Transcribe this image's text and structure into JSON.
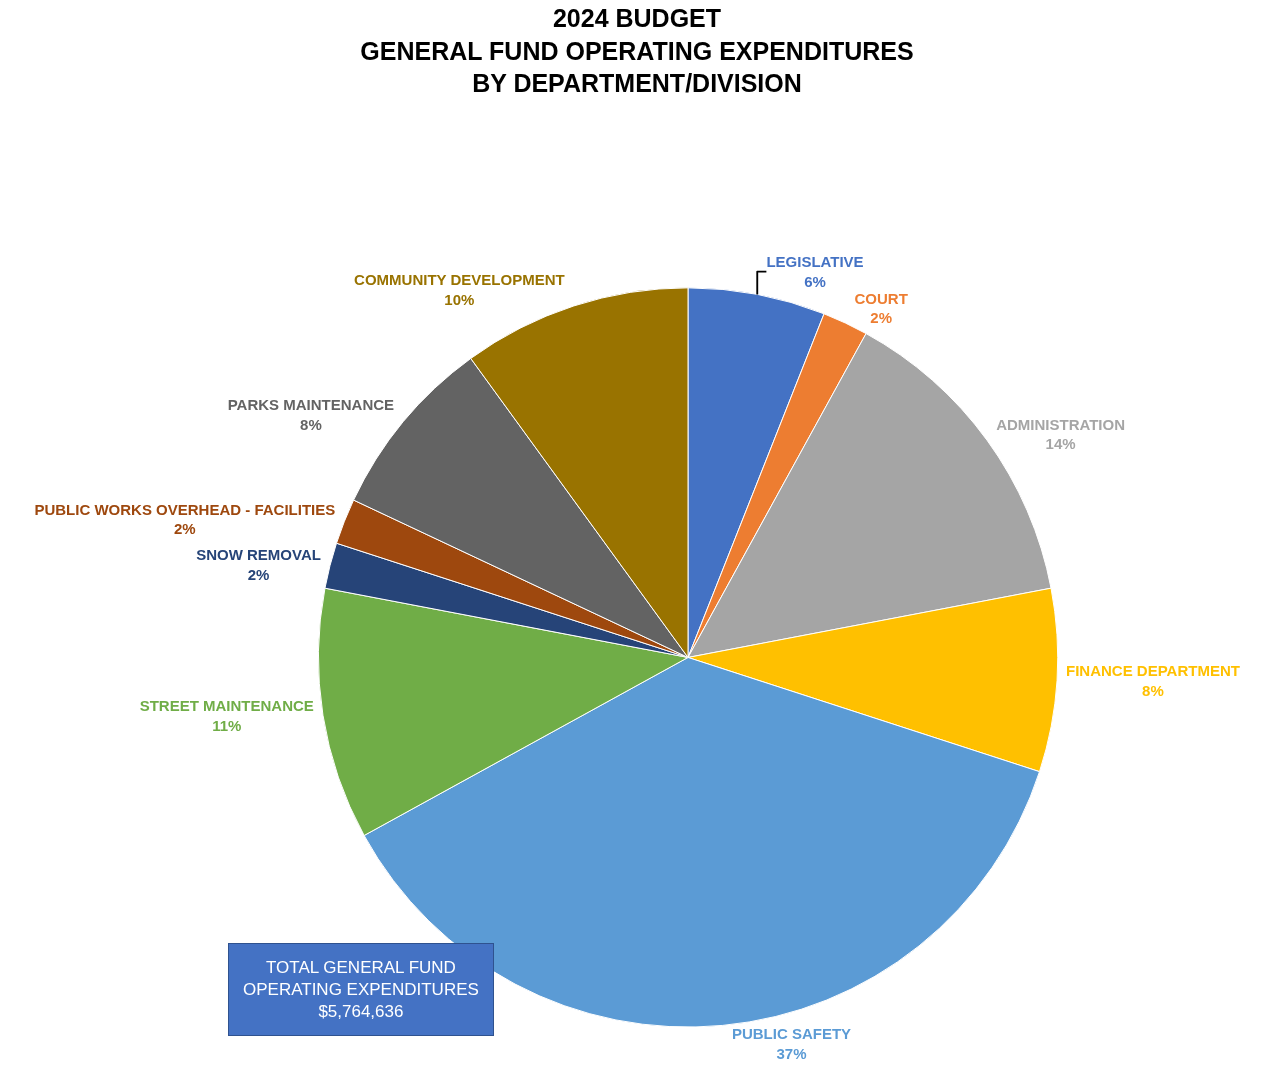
{
  "chart_data": {
    "type": "pie",
    "title": "2024 BUDGET\nGENERAL FUND OPERATING EXPENDITURES\nBY DEPARTMENT/DIVISION",
    "categories": [
      "LEGISLATIVE",
      "COURT",
      "ADMINISTRATION",
      "FINANCE DEPARTMENT",
      "PUBLIC SAFETY",
      "STREET MAINTENANCE",
      "SNOW REMOVAL",
      "PUBLIC WORKS OVERHEAD - FACILITIES",
      "PARKS MAINTENANCE",
      "COMMUNITY DEVELOPMENT"
    ],
    "values": [
      6,
      2,
      14,
      8,
      37,
      11,
      2,
      2,
      8,
      10
    ],
    "value_labels": [
      "6%",
      "2%",
      "14%",
      "8%",
      "37%",
      "11%",
      "2%",
      "2%",
      "8%",
      "10%"
    ],
    "colors": [
      "#4472c4",
      "#ed7d31",
      "#a5a5a5",
      "#ffc000",
      "#5b9bd5",
      "#70ad47",
      "#264478",
      "#9e480e",
      "#636363",
      "#997300"
    ],
    "legend": false,
    "annotations": [
      "TOTAL GENERAL FUND\nOPERATING EXPENDITURES\n$5,764,636"
    ]
  }
}
